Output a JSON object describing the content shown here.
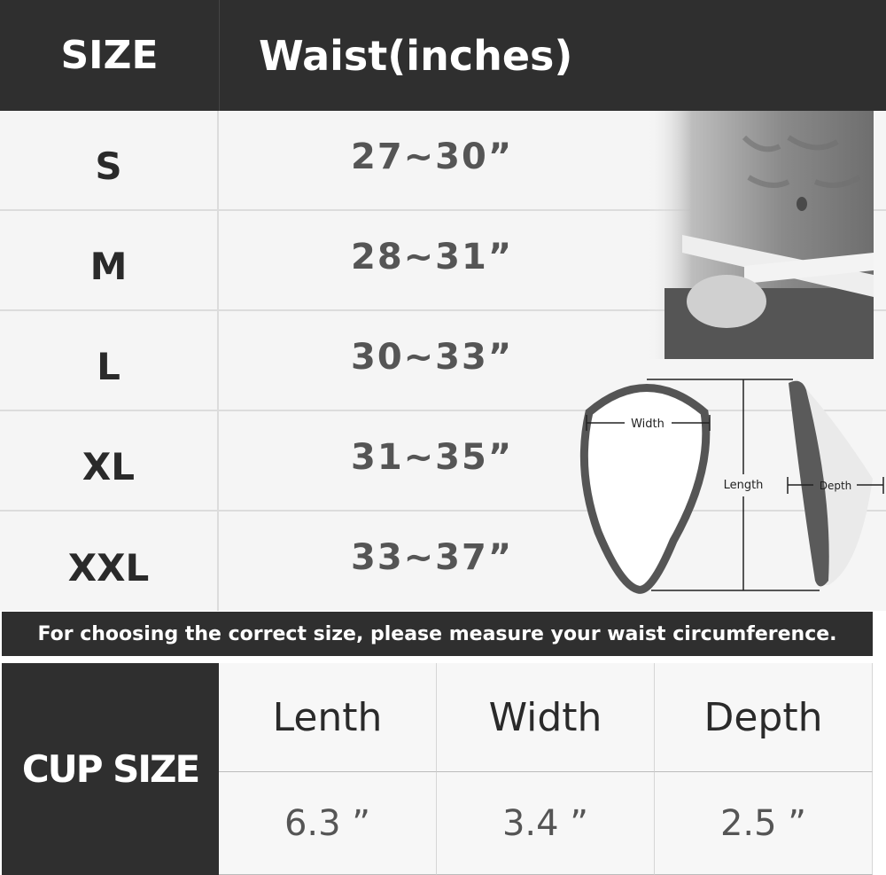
{
  "size_table": {
    "headers": [
      "SIZE",
      "Waist(inches)"
    ],
    "rows": [
      {
        "size": "S",
        "waist": "27~30”"
      },
      {
        "size": "M",
        "waist": "28~31”"
      },
      {
        "size": "L",
        "waist": "30~33”"
      },
      {
        "size": "XL",
        "waist": "31~35”"
      },
      {
        "size": "XXL",
        "waist": "33~37”"
      }
    ]
  },
  "note": "For choosing the correct size, please measure your waist circumference.",
  "diagram": {
    "width_label": "Width",
    "length_label": "Length",
    "depth_label": "Depth"
  },
  "cup_table": {
    "title": "CUP SIZE",
    "headers": [
      "Lenth",
      "Width",
      "Depth"
    ],
    "values": [
      "6.3 ”",
      "3.4 ”",
      "2.5 ”"
    ]
  },
  "colors": {
    "dark": "#2f2f2f",
    "cell": "#f5f5f5",
    "value_text": "#555555"
  }
}
